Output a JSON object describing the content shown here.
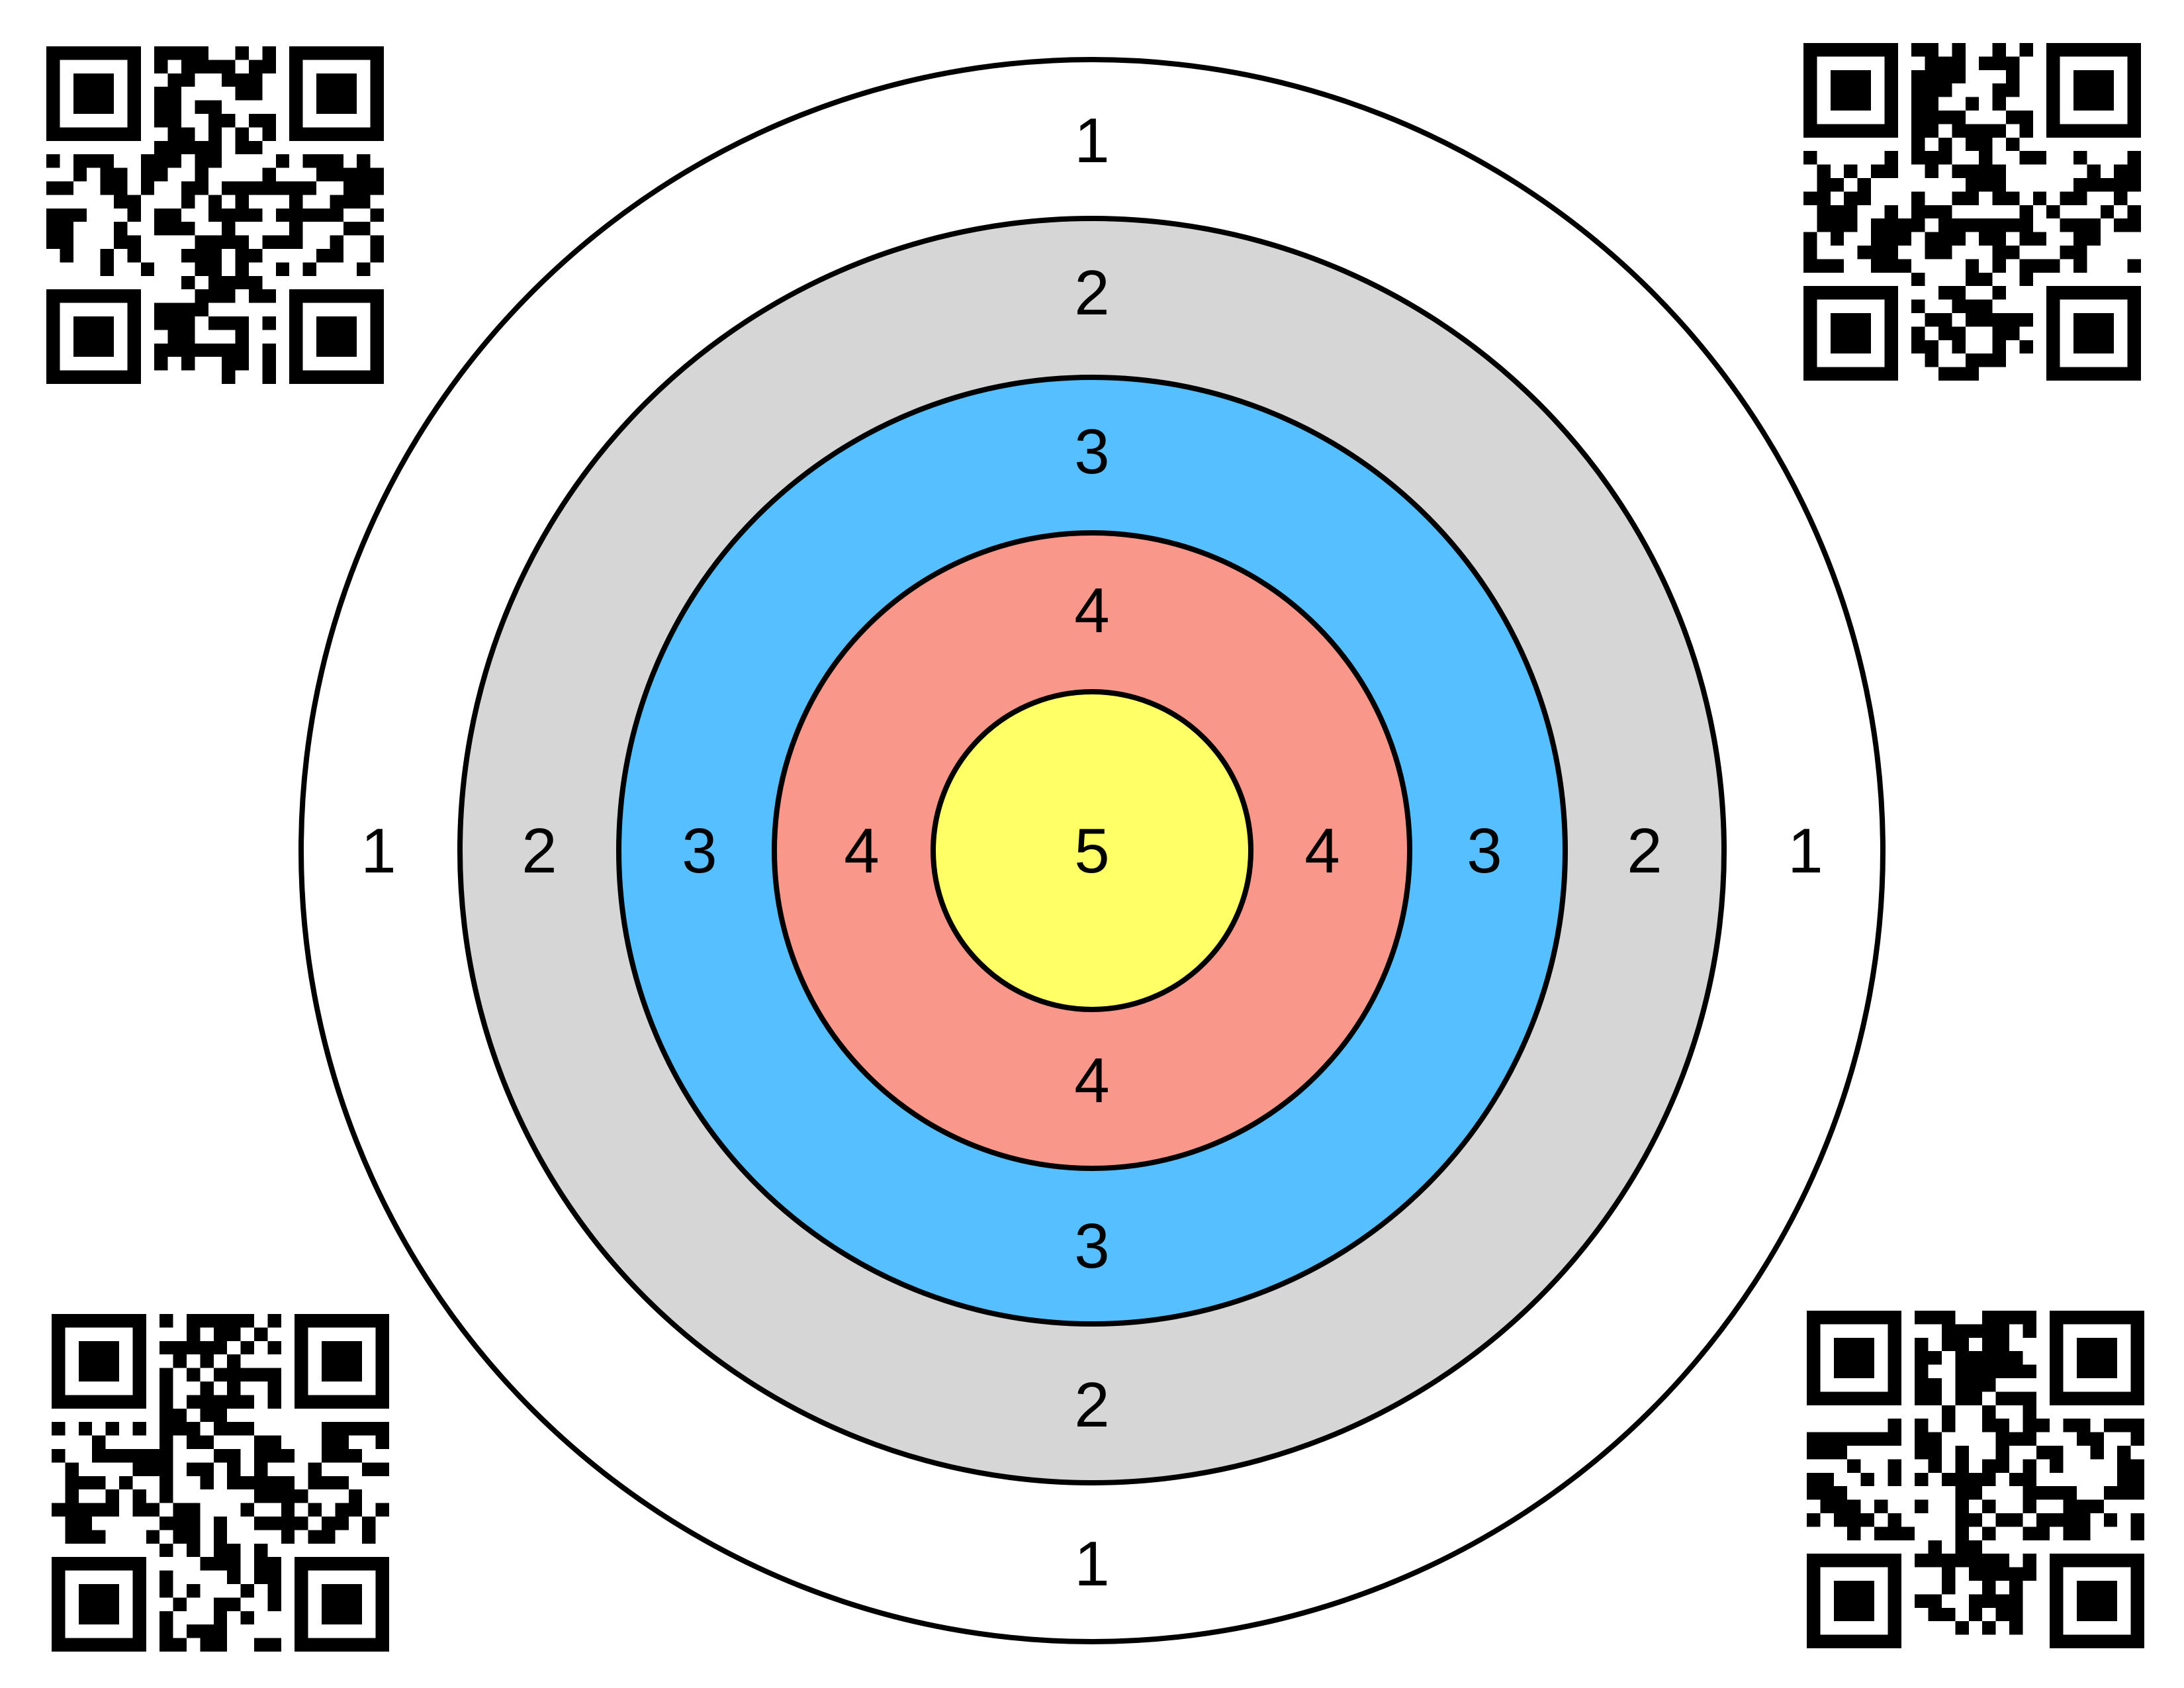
{
  "target": {
    "rings": [
      {
        "score": "1",
        "color": "#ffffff"
      },
      {
        "score": "2",
        "color": "#d6d6d6"
      },
      {
        "score": "3",
        "color": "#55bfff"
      },
      {
        "score": "4",
        "color": "#fa978b"
      },
      {
        "score": "5",
        "color": "#ffff66"
      }
    ],
    "outline_color": "#000000"
  },
  "labels": {
    "ring1": "1",
    "ring2": "2",
    "ring3": "3",
    "ring4": "4",
    "center": "5"
  },
  "qr_codes": {
    "color": "#000000",
    "icon": "qr-code-icon"
  }
}
